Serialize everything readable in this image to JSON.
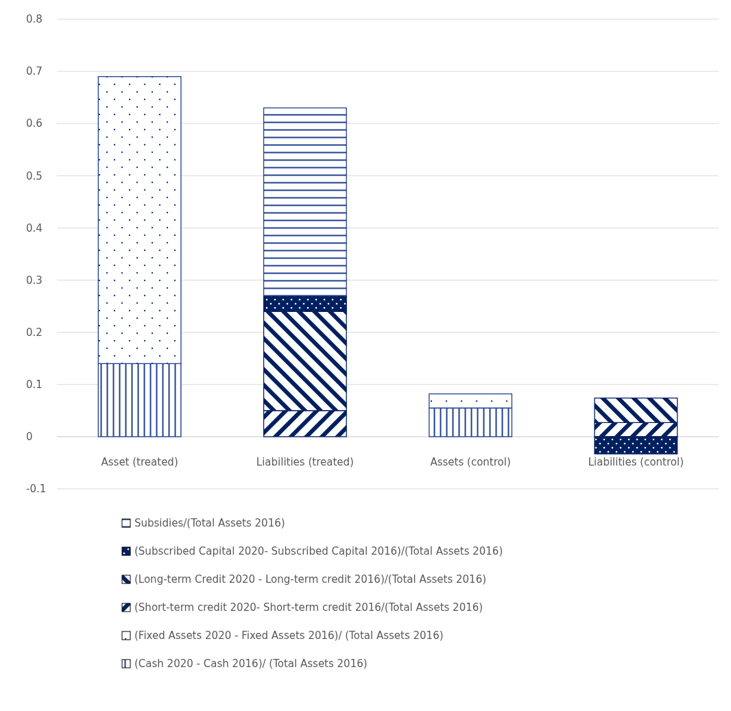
{
  "chart_data": {
    "type": "bar",
    "stacked": true,
    "categories": [
      "Asset (treated)",
      "Liabilities (treated)",
      "Assets (control)",
      "Liabilities (control)"
    ],
    "series": [
      {
        "name": "(Cash 2020 - Cash 2016)/ (Total Assets 2016)",
        "color": "#1f3f8f",
        "values": [
          0.14,
          0,
          0.055,
          0
        ]
      },
      {
        "name": "(Fixed Assets 2020 - Fixed Assets 2016)/ (Total Assets 2016)",
        "color": "#1f3f8f",
        "values": [
          0.55,
          0,
          0.027,
          0
        ]
      },
      {
        "name": "(Short-term credit 2020- Short-term credit 2016/(Total Assets 2016)",
        "color": "#002060",
        "values": [
          0,
          0.05,
          0,
          0.027
        ]
      },
      {
        "name": "(Long-term Credit 2020 - Long-term credit 2016)/(Total Assets 2016)",
        "color": "#002060",
        "values": [
          0,
          0.19,
          0,
          0.047
        ]
      },
      {
        "name": "(Subscribed Capital 2020- Subscribed Capital 2016)/(Total Assets 2016)",
        "color": "#002060",
        "values": [
          0,
          0.03,
          0,
          -0.033
        ]
      },
      {
        "name": "Subsidies/(Total Assets 2016)",
        "color": "#1f3f8f",
        "values": [
          0,
          0.36,
          0,
          0
        ]
      }
    ],
    "ylim": [
      -0.1,
      0.8
    ],
    "yticks": [
      -0.1,
      0,
      0.1,
      0.2,
      0.3,
      0.4,
      0.5,
      0.6,
      0.7,
      0.8
    ],
    "grid": "y",
    "legend": "bottom"
  }
}
